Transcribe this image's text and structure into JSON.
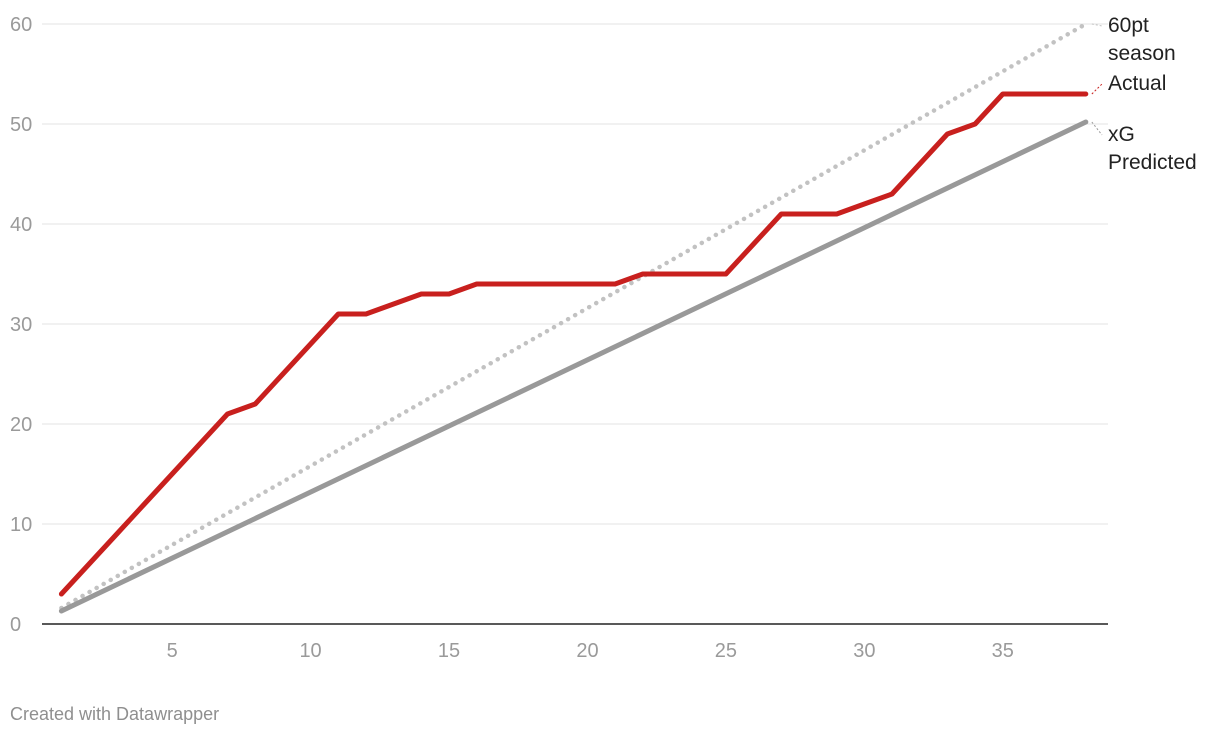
{
  "chart_data": {
    "type": "line",
    "title": "",
    "xlabel": "",
    "ylabel": "",
    "xlim": [
      0.3,
      38.8
    ],
    "ylim": [
      0,
      60
    ],
    "x_ticks": [
      5,
      10,
      15,
      20,
      25,
      30,
      35
    ],
    "y_ticks": [
      0,
      10,
      20,
      30,
      40,
      50,
      60
    ],
    "grid": "horizontal",
    "series": [
      {
        "name": "60pt season",
        "label_lines": [
          "60pt",
          "season"
        ],
        "style": "dotted",
        "color": "#c2c2c2",
        "x": [
          1,
          38
        ],
        "y": [
          1.6,
          60
        ]
      },
      {
        "name": "xG Predicted",
        "label_lines": [
          "xG",
          "Predicted"
        ],
        "style": "solid",
        "color": "#999999",
        "x": [
          1,
          38
        ],
        "y": [
          1.3,
          50.2
        ]
      },
      {
        "name": "Actual",
        "label_lines": [
          "Actual"
        ],
        "style": "solid",
        "color": "#c8201e",
        "x": [
          1,
          2,
          3,
          4,
          5,
          6,
          7,
          8,
          9,
          10,
          11,
          12,
          13,
          14,
          15,
          16,
          17,
          18,
          19,
          20,
          21,
          22,
          23,
          24,
          25,
          26,
          27,
          28,
          29,
          30,
          31,
          32,
          33,
          34,
          35,
          36,
          37,
          38
        ],
        "y": [
          3,
          6,
          9,
          12,
          15,
          18,
          21,
          22,
          25,
          28,
          31,
          31,
          32,
          33,
          33,
          34,
          34,
          34,
          34,
          34,
          34,
          35,
          35,
          35,
          35,
          38,
          41,
          41,
          41,
          42,
          43,
          46,
          49,
          50,
          53,
          53,
          53,
          53
        ]
      }
    ]
  },
  "footer": {
    "credit": "Created with Datawrapper"
  }
}
